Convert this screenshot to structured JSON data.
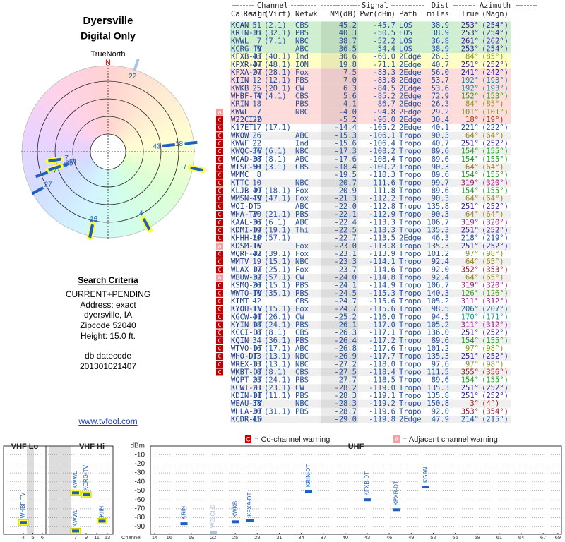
{
  "header": {
    "title": "Dyersville",
    "subtitle": "Digital Only"
  },
  "polar": {
    "north_label": "TrueNorth",
    "north": "N"
  },
  "search": {
    "heading": "Search Criteria",
    "lines": [
      "CURRENT+PENDING",
      "Address: exact",
      "dyersville, IA",
      "Zipcode 52040",
      "Height: 15.0 ft."
    ],
    "datecode_label": "db datecode",
    "datecode": "201301021407"
  },
  "link": "www.tvfool.com",
  "table": {
    "groups": [
      "Channel",
      "Signal",
      "Dist",
      "Azimuth"
    ],
    "columns": [
      "Callsign",
      "Real",
      "(Virt)",
      "Netwk",
      "NM(dB)",
      "Pwr(dBm)",
      "Path",
      "miles",
      "True",
      "(Magn)"
    ],
    "rows": [
      [
        null,
        "KGAN",
        "51",
        "(2.1)",
        "CBS",
        "45.2",
        "-45.7",
        "LOS",
        "38.9",
        "253°",
        "(254°)"
      ],
      [
        null,
        "KRIN-DT",
        "35",
        "(32.1)",
        "PBS",
        "40.3",
        "-50.5",
        "LOS",
        "38.9",
        "253°",
        "(254°)"
      ],
      [
        null,
        "KWWL",
        "7",
        "(7.1)",
        "NBC",
        "38.7",
        "-52.2",
        "LOS",
        "36.8",
        "261°",
        "(262°)"
      ],
      [
        null,
        "KCRG-TV",
        "9",
        null,
        "ABC",
        "36.5",
        "-54.4",
        "LOS",
        "38.9",
        "253°",
        "(254°)"
      ],
      [
        null,
        "KFXB-DT",
        "43",
        "(40.1)",
        "Ind",
        "30.6",
        "-60.0",
        "2Edge",
        "26.3",
        "84°",
        "(85°)"
      ],
      [
        null,
        "KPXR-DT",
        "47",
        "(48.1)",
        "ION",
        "19.8",
        "-71.1",
        "2Edge",
        "40.7",
        "251°",
        "(252°)"
      ],
      [
        null,
        "KFXA-DT",
        "27",
        "(28.1)",
        "Fox",
        "7.5",
        "-83.3",
        "2Edge",
        "56.0",
        "241°",
        "(242°)"
      ],
      [
        null,
        "KIIN",
        "12",
        "(12.1)",
        "PBS",
        "7.0",
        "-83.8",
        "2Edge",
        "53.7",
        "192°",
        "(193°)"
      ],
      [
        null,
        "KWKB",
        "25",
        "(20.1)",
        "CW",
        "6.3",
        "-84.5",
        "2Edge",
        "53.6",
        "192°",
        "(193°)"
      ],
      [
        null,
        "WHBF-TV",
        "4",
        "(4.1)",
        "CBS",
        "5.6",
        "-85.2",
        "2Edge",
        "72.9",
        "152°",
        "(153°)"
      ],
      [
        null,
        "KRIN",
        "18",
        null,
        "PBS",
        "4.1",
        "-86.7",
        "2Edge",
        "26.3",
        "84°",
        "(85°)"
      ],
      [
        "a",
        "KWWL",
        "7",
        null,
        "NBC",
        "-4.0",
        "-94.8",
        "2Edge",
        "29.2",
        "101°",
        "(101°)"
      ],
      [
        "C",
        "W22CI-D",
        "22",
        null,
        null,
        "-5.2",
        "-96.0",
        "2Edge",
        "30.4",
        "18°",
        "(19°)"
      ],
      [
        "C",
        "K17ET",
        "17",
        "(17.1)",
        null,
        "-14.4",
        "-105.2",
        "2Edge",
        "40.1",
        "221°",
        "(222°)"
      ],
      [
        "C",
        "WKOW",
        "26",
        null,
        "ABC",
        "-15.3",
        "-106.1",
        "Tropo",
        "90.3",
        "64°",
        "(64°)"
      ],
      [
        "C",
        "KWWF",
        "22",
        null,
        "Ind",
        "-15.6",
        "-106.4",
        "Tropo",
        "40.7",
        "251°",
        "(252°)"
      ],
      [
        "C",
        "KWQC-TV",
        "36",
        "(6.1)",
        "NBC",
        "-17.3",
        "-108.2",
        "Tropo",
        "89.6",
        "154°",
        "(155°)"
      ],
      [
        "C",
        "WQAD-DT",
        "38",
        "(8.1)",
        "ABC",
        "-17.6",
        "-108.4",
        "Tropo",
        "89.6",
        "154°",
        "(155°)"
      ],
      [
        "C",
        "WISC-DT",
        "50",
        "(3.1)",
        "CBS",
        "-18.4",
        "-109.2",
        "Tropo",
        "90.3",
        "64°",
        "(64°)"
      ],
      [
        "C",
        "WMMC",
        "8",
        null,
        null,
        "-19.5",
        "-110.3",
        "Tropo",
        "89.6",
        "154°",
        "(155°)"
      ],
      [
        "C",
        "KTTC",
        "10",
        null,
        "NBC",
        "-20.7",
        "-111.6",
        "Tropo",
        "99.7",
        "319°",
        "(320°)"
      ],
      [
        "C",
        "KLJB-DT",
        "49",
        "(18.1)",
        "Fox",
        "-20.9",
        "-111.8",
        "Tropo",
        "89.6",
        "154°",
        "(155°)"
      ],
      [
        "C",
        "WMSN-TV",
        "49",
        "(47.1)",
        "Fox",
        "-21.3",
        "-112.2",
        "Tropo",
        "90.3",
        "64°",
        "(64°)"
      ],
      [
        "C",
        "WOI-DT",
        "5",
        null,
        "ABC",
        "-22.0",
        "-112.8",
        "Tropo",
        "135.8",
        "251°",
        "(252°)"
      ],
      [
        "C",
        "WHA-TV",
        "20",
        "(21.1)",
        "PBS",
        "-22.1",
        "-112.9",
        "Tropo",
        "90.3",
        "64°",
        "(64°)"
      ],
      [
        "C",
        "KAAL-DT",
        "36",
        "(6.1)",
        "ABC",
        "-22.4",
        "-113.3",
        "Tropo",
        "106.7",
        "319°",
        "(320°)"
      ],
      [
        "C",
        "KDMI-DT",
        "19",
        "(19.1)",
        "Thi",
        "-22.5",
        "-113.3",
        "Tropo",
        "135.3",
        "251°",
        "(252°)"
      ],
      [
        "C",
        "KHHH-LP",
        "30",
        "(57.1)",
        null,
        "-22.7",
        "-113.5",
        "2Edge",
        "46.3",
        "218°",
        "(219°)"
      ],
      [
        "a",
        "KDSM-TV",
        "16",
        null,
        "Fox",
        "-23.0",
        "-113.8",
        "Tropo",
        "135.3",
        "251°",
        "(252°)"
      ],
      [
        "C",
        "WQRF-DT",
        "42",
        "(39.1)",
        "Fox",
        "-23.1",
        "-113.9",
        "Tropo",
        "101.2",
        "97°",
        "(98°)"
      ],
      [
        "C",
        "WMTV",
        "19",
        "(15.1)",
        "NBC",
        "-23.3",
        "-114.1",
        "Tropo",
        "92.4",
        "64°",
        "(65°)"
      ],
      [
        "C",
        "WLAX-DT",
        "17",
        "(25.1)",
        "Fox",
        "-23.7",
        "-114.6",
        "Tropo",
        "92.0",
        "352°",
        "(353°)"
      ],
      [
        "a",
        "WBUW-DT",
        "32",
        "(57.1)",
        "CW",
        "-24.0",
        "-114.8",
        "Tropo",
        "92.4",
        "64°",
        "(65°)"
      ],
      [
        "C",
        "KSMQ-DT",
        "20",
        "(15.1)",
        "PBS",
        "-24.1",
        "-114.9",
        "Tropo",
        "106.7",
        "319°",
        "(320°)"
      ],
      [
        "C",
        "WWTO-TV",
        "10",
        "(35.1)",
        "PBS",
        "-24.5",
        "-115.3",
        "Tropo",
        "140.3",
        "126°",
        "(126°)"
      ],
      [
        "C",
        "KIMT",
        "42",
        null,
        "CBS",
        "-24.7",
        "-115.6",
        "Tropo",
        "105.2",
        "311°",
        "(312°)"
      ],
      [
        "C",
        "KYOU-TV",
        "15",
        "(15.1)",
        "Fox",
        "-24.7",
        "-115.6",
        "Tropo",
        "98.5",
        "206°",
        "(207°)"
      ],
      [
        "C",
        "KGCW-DT",
        "41",
        "(26.1)",
        "CW",
        "-25.2",
        "-116.0",
        "Tropo",
        "94.5",
        "170°",
        "(171°)"
      ],
      [
        "C",
        "KYIN-DT",
        "18",
        "(24.1)",
        "PBS",
        "-26.1",
        "-117.0",
        "Tropo",
        "105.2",
        "311°",
        "(312°)"
      ],
      [
        "C",
        "KCCI-DT",
        "8",
        "(8.1)",
        "CBS",
        "-26.3",
        "-117.1",
        "Tropo",
        "136.0",
        "251°",
        "(252°)"
      ],
      [
        "C",
        "KQIN",
        "34",
        "(36.1)",
        "PBS",
        "-26.4",
        "-117.2",
        "Tropo",
        "89.6",
        "154°",
        "(155°)"
      ],
      [
        "C",
        "WTVO-DT",
        "16",
        "(17.1)",
        "ABC",
        "-26.8",
        "-117.6",
        "Tropo",
        "101.2",
        "97°",
        "(98°)"
      ],
      [
        "C",
        "WHO-DT",
        "13",
        "(13.1)",
        "NBC",
        "-26.9",
        "-117.7",
        "Tropo",
        "135.3",
        "251°",
        "(252°)"
      ],
      [
        "C",
        "WREX-DT",
        "13",
        "(13.1)",
        "NBC",
        "-27.2",
        "-118.0",
        "Tropo",
        "97.6",
        "97°",
        "(98°)"
      ],
      [
        "C",
        "WKBT-DT",
        "8",
        "(8.1)",
        "CBS",
        "-27.5",
        "-118.4",
        "Tropo",
        "111.5",
        "355°",
        "(356°)"
      ],
      [
        null,
        "WQPT-DT",
        "23",
        "(24.1)",
        "PBS",
        "-27.7",
        "-118.5",
        "Tropo",
        "89.6",
        "154°",
        "(155°)"
      ],
      [
        null,
        "KCWI-DT",
        "23",
        "(23.1)",
        "CW",
        "-28.2",
        "-119.0",
        "Tropo",
        "135.3",
        "251°",
        "(252°)"
      ],
      [
        null,
        "KDIN-DT",
        "11",
        "(11.1)",
        "PBS",
        "-28.3",
        "-119.1",
        "Tropo",
        "135.8",
        "251°",
        "(252°)"
      ],
      [
        null,
        "WEAU-TV",
        "38",
        null,
        "NBC",
        "-28.3",
        "-119.2",
        "Tropo",
        "150.8",
        "3°",
        "(4°)"
      ],
      [
        null,
        "WHLA-DT",
        "30",
        "(31.1)",
        "PBS",
        "-28.7",
        "-119.6",
        "Tropo",
        "92.0",
        "353°",
        "(354°)"
      ],
      [
        null,
        "KCDR-LD",
        "45",
        null,
        null,
        "-29.0",
        "-119.8",
        "2Edge",
        "47.9",
        "214°",
        "(215°)"
      ]
    ]
  },
  "legend": {
    "co_icon": "C",
    "co": "= Co-channel warning",
    "adj_icon": "a",
    "adj": "= Adjacent channel warning"
  },
  "spectrum": {
    "bands": [
      "VHF Lo",
      "VHF Hi",
      "UHF"
    ],
    "unit": "dBm",
    "x_label": "Channel",
    "ylim": [
      -100,
      0
    ],
    "yticks": [
      -10,
      -20,
      -30,
      -40,
      -50,
      -60,
      -70,
      -80,
      -90
    ],
    "channels": [
      4,
      5,
      6,
      7,
      9,
      11,
      13,
      14,
      16,
      19,
      22,
      25,
      28,
      31,
      34,
      37,
      40,
      43,
      46,
      49,
      52,
      55,
      58,
      61,
      64,
      67,
      69
    ],
    "grid": true
  }
}
